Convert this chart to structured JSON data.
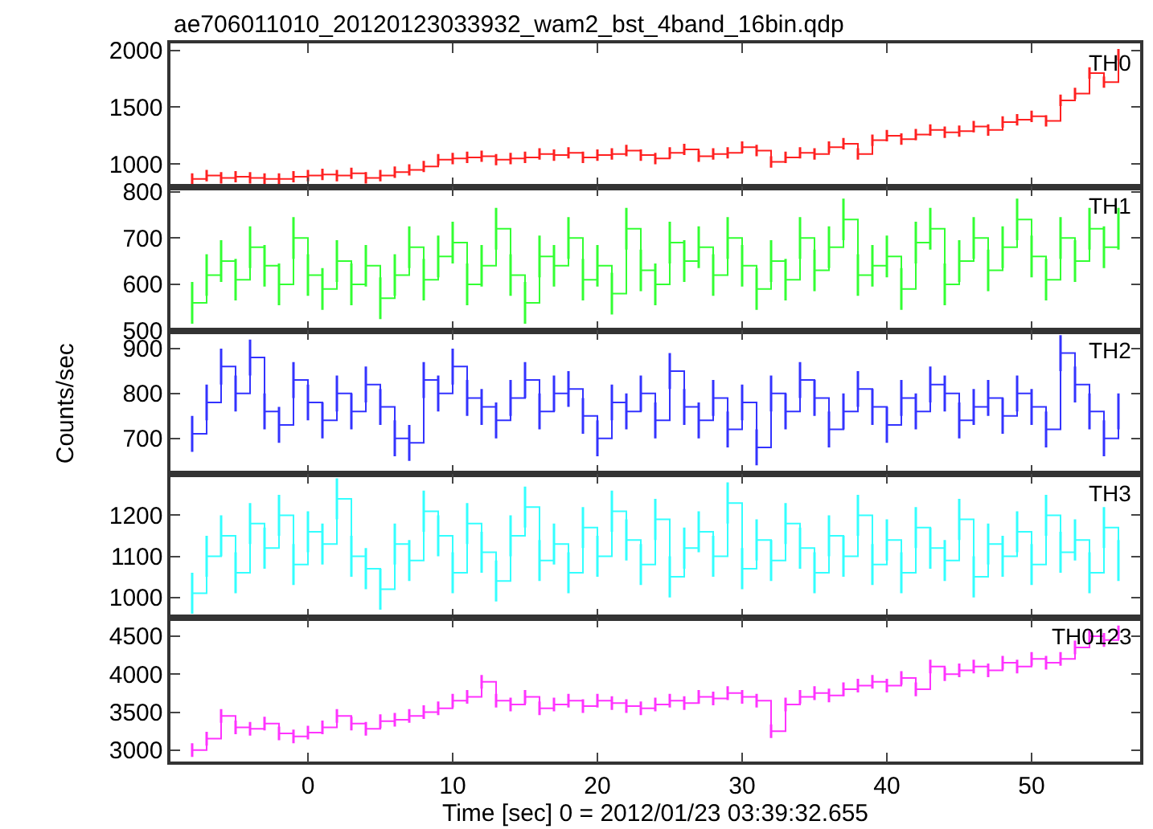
{
  "chart_data": [
    {
      "type": "step",
      "title": "ae706011010_20120123033932_wam2_bst_4band_16bin.qdp",
      "x": [
        -8,
        -7,
        -6,
        -5,
        -4,
        -3,
        -2,
        -1,
        0,
        1,
        2,
        3,
        4,
        5,
        6,
        7,
        8,
        9,
        10,
        11,
        12,
        13,
        14,
        15,
        16,
        17,
        18,
        19,
        20,
        21,
        22,
        23,
        24,
        25,
        26,
        27,
        28,
        29,
        30,
        31,
        32,
        33,
        34,
        35,
        36,
        37,
        38,
        39,
        40,
        41,
        42,
        43,
        44,
        45,
        46,
        47,
        48,
        49,
        50,
        51,
        52,
        53,
        54,
        55,
        56
      ],
      "xlim": [
        -9.5,
        57.5
      ],
      "xticks": [
        0,
        10,
        20,
        30,
        40,
        50
      ],
      "ylim": [
        800,
        2060
      ],
      "yticks": [
        1000,
        1500,
        2000
      ],
      "tick_labels": "y",
      "legend": "top right",
      "marker": "none",
      "series": [
        {
          "name": "TH0",
          "color": "#ff2020",
          "values": [
            870,
            900,
            880,
            890,
            880,
            870,
            870,
            890,
            900,
            910,
            900,
            920,
            880,
            900,
            930,
            950,
            980,
            1040,
            1050,
            1060,
            1070,
            1040,
            1050,
            1060,
            1090,
            1080,
            1100,
            1060,
            1080,
            1090,
            1120,
            1080,
            1050,
            1100,
            1130,
            1070,
            1090,
            1100,
            1150,
            1120,
            1020,
            1060,
            1100,
            1090,
            1150,
            1180,
            1090,
            1210,
            1250,
            1220,
            1260,
            1300,
            1280,
            1290,
            1330,
            1300,
            1370,
            1390,
            1420,
            1380,
            1560,
            1620,
            1800,
            1720,
            1960
          ],
          "errors": [
            50,
            50,
            50,
            50,
            50,
            50,
            50,
            50,
            50,
            50,
            50,
            50,
            50,
            50,
            50,
            50,
            50,
            50,
            50,
            50,
            50,
            50,
            50,
            50,
            50,
            50,
            50,
            50,
            50,
            50,
            50,
            50,
            50,
            50,
            50,
            50,
            50,
            50,
            50,
            50,
            50,
            50,
            50,
            50,
            50,
            50,
            50,
            50,
            50,
            50,
            50,
            50,
            50,
            50,
            50,
            50,
            50,
            50,
            50,
            50,
            50,
            50,
            50,
            50,
            50
          ]
        }
      ]
    },
    {
      "type": "step",
      "x": [
        -8,
        -7,
        -6,
        -5,
        -4,
        -3,
        -2,
        -1,
        0,
        1,
        2,
        3,
        4,
        5,
        6,
        7,
        8,
        9,
        10,
        11,
        12,
        13,
        14,
        15,
        16,
        17,
        18,
        19,
        20,
        21,
        22,
        23,
        24,
        25,
        26,
        27,
        28,
        29,
        30,
        31,
        32,
        33,
        34,
        35,
        36,
        37,
        38,
        39,
        40,
        41,
        42,
        43,
        44,
        45,
        46,
        47,
        48,
        49,
        50,
        51,
        52,
        53,
        54,
        55,
        56
      ],
      "xlim": [
        -9.5,
        57.5
      ],
      "xticks": [
        0,
        10,
        20,
        30,
        40,
        50
      ],
      "ylim": [
        500,
        810
      ],
      "yticks": [
        500,
        600,
        700,
        800
      ],
      "tick_labels": "y",
      "legend": "top right",
      "marker": "none",
      "series": [
        {
          "name": "TH1",
          "color": "#33ff33",
          "values": [
            560,
            620,
            650,
            610,
            680,
            640,
            600,
            700,
            620,
            590,
            650,
            600,
            640,
            570,
            620,
            680,
            610,
            660,
            690,
            600,
            640,
            720,
            620,
            560,
            660,
            640,
            700,
            610,
            640,
            580,
            720,
            630,
            600,
            690,
            650,
            680,
            620,
            700,
            640,
            590,
            650,
            610,
            700,
            630,
            680,
            740,
            620,
            640,
            660,
            590,
            690,
            720,
            600,
            650,
            700,
            630,
            680,
            740,
            660,
            610,
            700,
            650,
            720,
            680,
            720
          ],
          "errors": [
            45,
            45,
            45,
            45,
            45,
            45,
            45,
            45,
            45,
            45,
            45,
            45,
            45,
            45,
            45,
            45,
            45,
            45,
            45,
            45,
            45,
            45,
            45,
            45,
            45,
            45,
            45,
            45,
            45,
            45,
            45,
            45,
            45,
            45,
            45,
            45,
            45,
            45,
            45,
            45,
            45,
            45,
            45,
            45,
            45,
            45,
            45,
            45,
            45,
            45,
            45,
            45,
            45,
            45,
            45,
            45,
            45,
            45,
            45,
            45,
            45,
            45,
            45,
            45,
            45
          ]
        }
      ]
    },
    {
      "type": "step",
      "ylabel": "Counts/sec",
      "x": [
        -8,
        -7,
        -6,
        -5,
        -4,
        -3,
        -2,
        -1,
        0,
        1,
        2,
        3,
        4,
        5,
        6,
        7,
        8,
        9,
        10,
        11,
        12,
        13,
        14,
        15,
        16,
        17,
        18,
        19,
        20,
        21,
        22,
        23,
        24,
        25,
        26,
        27,
        28,
        29,
        30,
        31,
        32,
        33,
        34,
        35,
        36,
        37,
        38,
        39,
        40,
        41,
        42,
        43,
        44,
        45,
        46,
        47,
        48,
        49,
        50,
        51,
        52,
        53,
        54,
        55,
        56
      ],
      "xlim": [
        -9.5,
        57.5
      ],
      "xticks": [
        0,
        10,
        20,
        30,
        40,
        50
      ],
      "ylim": [
        620,
        940
      ],
      "yticks": [
        700,
        800,
        900
      ],
      "tick_labels": "y",
      "legend": "top right",
      "marker": "none",
      "series": [
        {
          "name": "TH2",
          "color": "#3333ff",
          "values": [
            710,
            780,
            860,
            800,
            880,
            760,
            730,
            830,
            780,
            740,
            800,
            760,
            820,
            770,
            700,
            690,
            830,
            800,
            860,
            790,
            770,
            740,
            790,
            830,
            760,
            800,
            810,
            750,
            700,
            780,
            760,
            800,
            740,
            850,
            770,
            740,
            790,
            720,
            780,
            680,
            800,
            760,
            830,
            790,
            720,
            760,
            810,
            770,
            730,
            790,
            760,
            820,
            800,
            740,
            770,
            790,
            750,
            800,
            770,
            720,
            890,
            820,
            760,
            700,
            760
          ],
          "errors": [
            40,
            40,
            40,
            40,
            40,
            40,
            40,
            40,
            40,
            40,
            40,
            40,
            40,
            40,
            40,
            40,
            40,
            40,
            40,
            40,
            40,
            40,
            40,
            40,
            40,
            40,
            40,
            40,
            40,
            40,
            40,
            40,
            40,
            40,
            40,
            40,
            40,
            40,
            40,
            40,
            40,
            40,
            40,
            40,
            40,
            40,
            40,
            40,
            40,
            40,
            40,
            40,
            40,
            40,
            40,
            40,
            40,
            40,
            40,
            40,
            40,
            40,
            40,
            40,
            40
          ]
        }
      ]
    },
    {
      "type": "step",
      "x": [
        -8,
        -7,
        -6,
        -5,
        -4,
        -3,
        -2,
        -1,
        0,
        1,
        2,
        3,
        4,
        5,
        6,
        7,
        8,
        9,
        10,
        11,
        12,
        13,
        14,
        15,
        16,
        17,
        18,
        19,
        20,
        21,
        22,
        23,
        24,
        25,
        26,
        27,
        28,
        29,
        30,
        31,
        32,
        33,
        34,
        35,
        36,
        37,
        38,
        39,
        40,
        41,
        42,
        43,
        44,
        45,
        46,
        47,
        48,
        49,
        50,
        51,
        52,
        53,
        54,
        55,
        56
      ],
      "xlim": [
        -9.5,
        57.5
      ],
      "xticks": [
        0,
        10,
        20,
        30,
        40,
        50
      ],
      "ylim": [
        950,
        1300
      ],
      "yticks": [
        1000,
        1100,
        1200
      ],
      "tick_labels": "y",
      "legend": "top right",
      "marker": "none",
      "series": [
        {
          "name": "TH3",
          "color": "#33ffff",
          "values": [
            1010,
            1100,
            1150,
            1060,
            1180,
            1120,
            1200,
            1080,
            1160,
            1130,
            1240,
            1100,
            1070,
            1020,
            1130,
            1090,
            1210,
            1150,
            1060,
            1180,
            1110,
            1040,
            1150,
            1220,
            1090,
            1130,
            1060,
            1170,
            1100,
            1210,
            1140,
            1080,
            1190,
            1050,
            1120,
            1160,
            1100,
            1230,
            1070,
            1140,
            1090,
            1180,
            1120,
            1060,
            1150,
            1100,
            1200,
            1080,
            1140,
            1060,
            1170,
            1120,
            1090,
            1190,
            1050,
            1130,
            1100,
            1160,
            1080,
            1200,
            1110,
            1140,
            1060,
            1170,
            1090
          ],
          "errors": [
            50,
            50,
            50,
            50,
            50,
            50,
            50,
            50,
            50,
            50,
            50,
            50,
            50,
            50,
            50,
            50,
            50,
            50,
            50,
            50,
            50,
            50,
            50,
            50,
            50,
            50,
            50,
            50,
            50,
            50,
            50,
            50,
            50,
            50,
            50,
            50,
            50,
            50,
            50,
            50,
            50,
            50,
            50,
            50,
            50,
            50,
            50,
            50,
            50,
            50,
            50,
            50,
            50,
            50,
            50,
            50,
            50,
            50,
            50,
            50,
            50,
            50,
            50,
            50,
            50
          ]
        }
      ]
    },
    {
      "type": "step",
      "xlabel": "Time [sec] 0 = 2012/01/23 03:39:32.655",
      "x": [
        -8,
        -7,
        -6,
        -5,
        -4,
        -3,
        -2,
        -1,
        0,
        1,
        2,
        3,
        4,
        5,
        6,
        7,
        8,
        9,
        10,
        11,
        12,
        13,
        14,
        15,
        16,
        17,
        18,
        19,
        20,
        21,
        22,
        23,
        24,
        25,
        26,
        27,
        28,
        29,
        30,
        31,
        32,
        33,
        34,
        35,
        36,
        37,
        38,
        39,
        40,
        41,
        42,
        43,
        44,
        45,
        46,
        47,
        48,
        49,
        50,
        51,
        52,
        53,
        54,
        55,
        56
      ],
      "xlim": [
        -9.5,
        57.5
      ],
      "xticks": [
        0,
        10,
        20,
        30,
        40,
        50
      ],
      "ylim": [
        2850,
        4740
      ],
      "yticks": [
        3000,
        3500,
        4000,
        4500
      ],
      "legend": "top right",
      "marker": "none",
      "series": [
        {
          "name": "TH0123",
          "color": "#ff33ff",
          "values": [
            3000,
            3150,
            3450,
            3300,
            3280,
            3350,
            3220,
            3180,
            3230,
            3300,
            3450,
            3350,
            3280,
            3380,
            3400,
            3450,
            3500,
            3550,
            3650,
            3700,
            3900,
            3650,
            3600,
            3700,
            3550,
            3600,
            3650,
            3580,
            3650,
            3620,
            3580,
            3550,
            3600,
            3650,
            3620,
            3700,
            3680,
            3750,
            3700,
            3650,
            3250,
            3600,
            3700,
            3750,
            3720,
            3800,
            3850,
            3900,
            3850,
            3950,
            3800,
            4100,
            4000,
            4050,
            4100,
            4050,
            4150,
            4100,
            4200,
            4150,
            4200,
            4350,
            4500,
            4450,
            4550
          ],
          "errors": [
            90,
            90,
            90,
            90,
            90,
            90,
            90,
            90,
            90,
            90,
            90,
            90,
            90,
            90,
            90,
            90,
            90,
            90,
            90,
            90,
            90,
            90,
            90,
            90,
            90,
            90,
            90,
            90,
            90,
            90,
            90,
            90,
            90,
            90,
            90,
            90,
            90,
            90,
            90,
            90,
            90,
            90,
            90,
            90,
            90,
            90,
            90,
            90,
            90,
            90,
            90,
            90,
            90,
            90,
            90,
            90,
            90,
            90,
            90,
            90,
            90,
            90,
            90,
            90,
            90
          ]
        }
      ]
    }
  ]
}
